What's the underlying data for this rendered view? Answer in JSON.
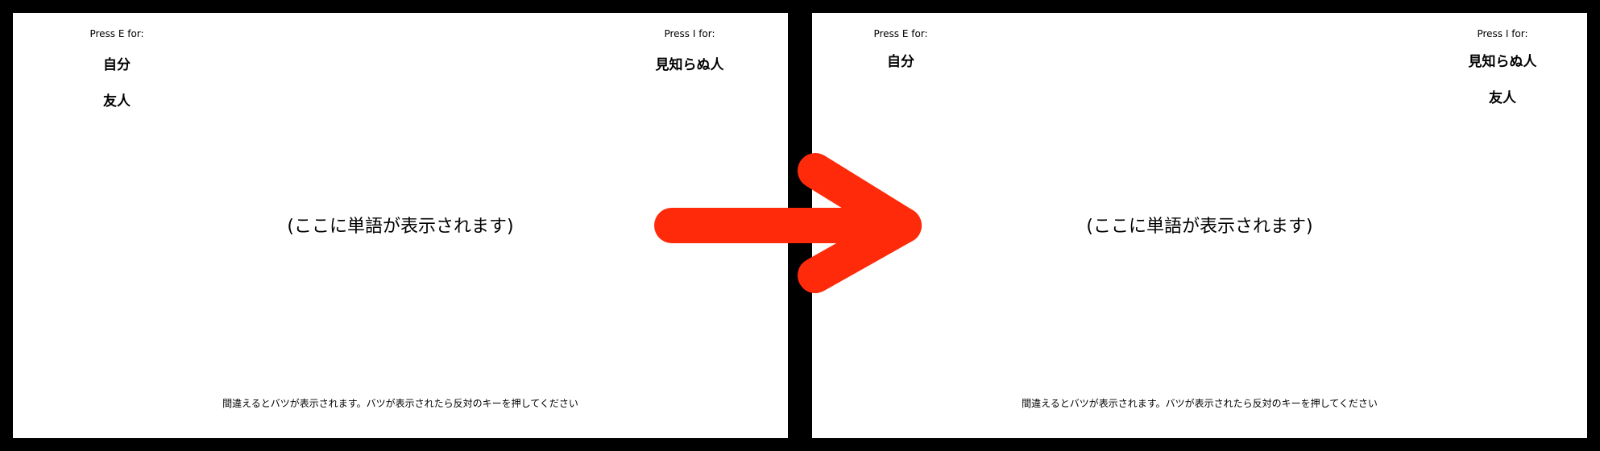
{
  "before": {
    "left_prompt": "Press E for:",
    "right_prompt": "Press I for:",
    "left_categories": [
      "自分",
      "友人"
    ],
    "right_categories": [
      "見知らぬ人"
    ],
    "stimulus_placeholder": "(ここに単語が表示されます)",
    "instruction": "間違えるとバツが表示されます。バツが表示されたら反対のキーを押してください"
  },
  "after": {
    "left_prompt": "Press E for:",
    "right_prompt": "Press I for:",
    "left_categories": [
      "自分"
    ],
    "right_categories": [
      "見知らぬ人",
      "友人"
    ],
    "stimulus_placeholder": "(ここに単語が表示されます)",
    "instruction": "間違えるとバツが表示されます。バツが表示されたら反対のキーを押してください"
  },
  "arrow": {
    "icon": "right-arrow-icon",
    "color": "#ff2a0a"
  },
  "colors": {
    "frame": "#000000",
    "screen": "#ffffff",
    "text": "#000000"
  }
}
